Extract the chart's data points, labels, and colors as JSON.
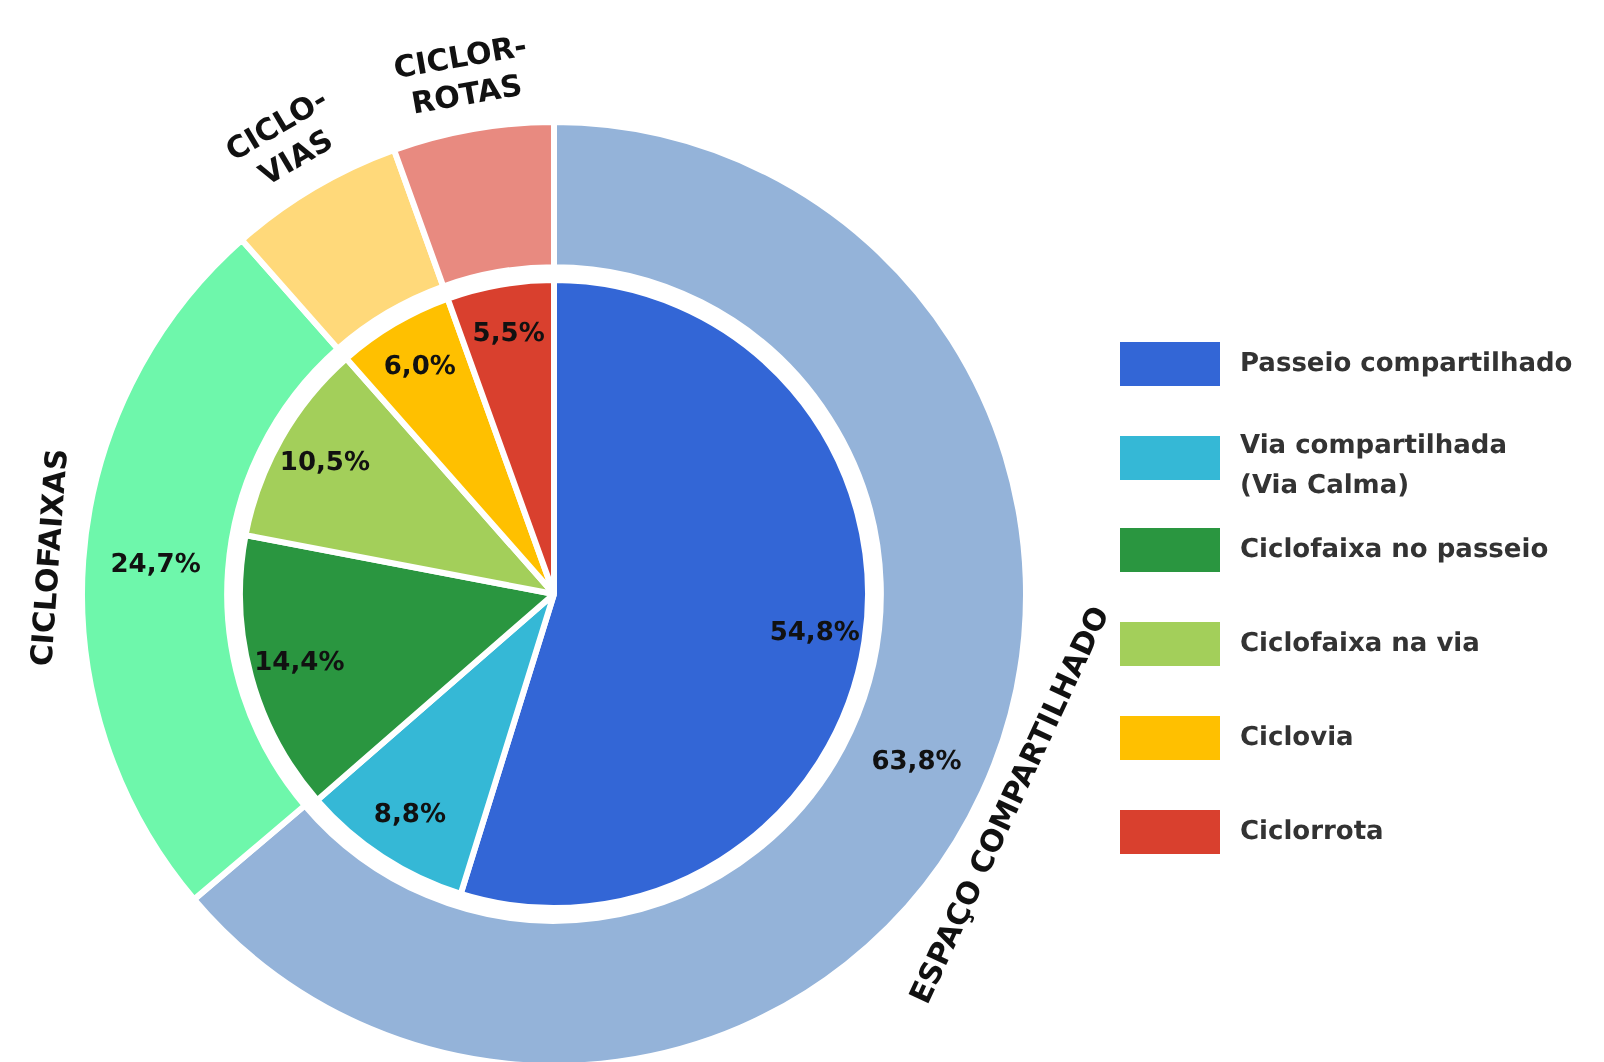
{
  "chart_data": [
    {
      "type": "donut",
      "categories": [
        "ESPAÇO COMPARTILHADO",
        "CICLOFAIXAS",
        "CICLO-\nVIAS",
        "CICLOR-\nROTAS"
      ],
      "values": [
        63.8,
        24.7,
        6.0,
        5.5
      ],
      "colors": [
        "#94b3d9",
        "#6ef7ab",
        "#ffd97a",
        "#e88a80"
      ],
      "value_labels": [
        "63,8%",
        "24,7%",
        null,
        null
      ]
    },
    {
      "type": "pie",
      "categories": [
        "Passeio compartilhado",
        "Via compartilhada\n(Via Calma)",
        "Ciclofaixa no passeio",
        "Ciclofaixa na via",
        "Ciclovia",
        "Ciclorrota"
      ],
      "values": [
        54.8,
        8.8,
        14.4,
        10.5,
        6.0,
        5.5
      ],
      "colors": [
        "#3366d6",
        "#35b8d6",
        "#2a9640",
        "#a3cf5a",
        "#ffc000",
        "#d9402e"
      ],
      "value_labels": [
        "54,8%",
        "8,8%",
        "14,4%",
        "10,5%",
        "6,0%",
        "5,5%"
      ],
      "legend": "right"
    }
  ]
}
